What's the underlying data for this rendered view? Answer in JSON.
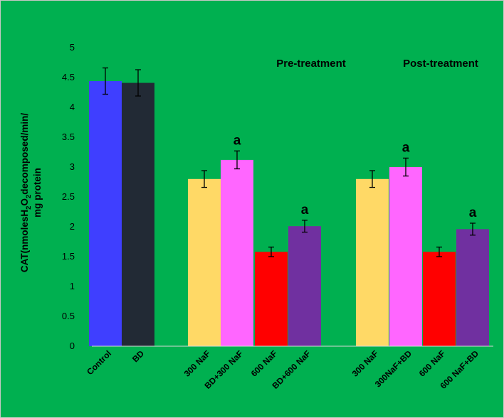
{
  "chart_data": {
    "type": "bar",
    "title": "",
    "xlabel": "",
    "ylabel": {
      "line1_prefix": "CAT(nmolesH",
      "line1_sub": "2",
      "line1_mid": "O",
      "line1_sub2": "2",
      "line1_suffix": "decomposed/min/",
      "line2": "mg protein"
    },
    "ylim": [
      0,
      5
    ],
    "yticks": [
      "0",
      "0.5",
      "1",
      "1.5",
      "2",
      "2.5",
      "3",
      "3.5",
      "4",
      "4.5",
      "5"
    ],
    "grid": false,
    "categories": [
      "Control",
      "BD",
      "300 NaF",
      "BD+300 NaF",
      "600 NaF",
      "BD+600 NaF",
      "300 NaF",
      "300NaF+BD",
      "600 NaF",
      "600 NaF+BD"
    ],
    "values": [
      4.44,
      4.41,
      2.8,
      3.12,
      1.58,
      2.01,
      2.8,
      3.0,
      1.58,
      1.96
    ],
    "errors": [
      0.22,
      0.22,
      0.14,
      0.15,
      0.08,
      0.1,
      0.14,
      0.15,
      0.08,
      0.1
    ],
    "colors": [
      "#3f3fff",
      "#222a35",
      "#ffd966",
      "#ff66ff",
      "#ff0000",
      "#7030a0",
      "#ffd966",
      "#ff66ff",
      "#ff0000",
      "#7030a0"
    ],
    "significance": [
      "",
      "",
      "",
      "a",
      "",
      "a",
      "",
      "a",
      "",
      "a"
    ],
    "group_labels": [
      "Pre-treatment",
      "Post-treatment"
    ],
    "background": "#00b050"
  }
}
